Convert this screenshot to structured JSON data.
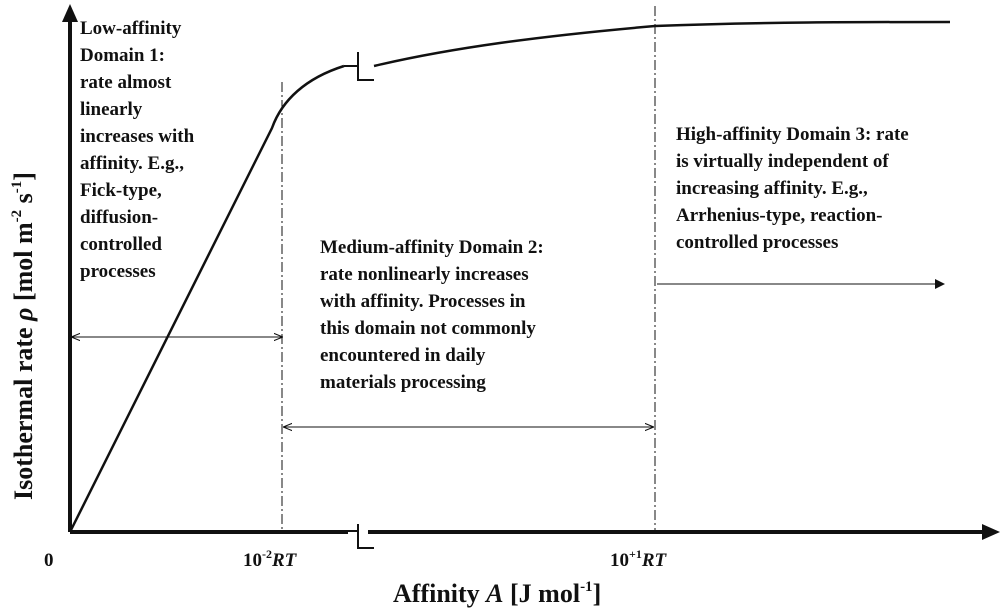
{
  "chart_data": {
    "type": "line",
    "title": "",
    "xlabel": {
      "prefix": "Affinity ",
      "symbol": "A",
      "unit_open": " [J mol",
      "unit_exp": "-1",
      "unit_close": "]"
    },
    "ylabel": {
      "prefix": "Isothermal rate ",
      "symbol": "ρ",
      "unit_open": " [mol m",
      "unit_exp1": "-2",
      "unit_mid": " s",
      "unit_exp2": "-1",
      "unit_close": "]"
    },
    "x_ticks": [
      {
        "base": "0",
        "exp": "",
        "suffix": ""
      },
      {
        "base": "10",
        "exp": "-2",
        "suffix": "RT"
      },
      {
        "base": "10",
        "exp": "+1",
        "suffix": "RT"
      }
    ],
    "axis_break": true,
    "grid": false,
    "curve_shape": "linear rise, then nonlinear bend across an axis break, then plateau",
    "domains": [
      {
        "id": "low",
        "lines": [
          "Low-affinity",
          "Domain 1:",
          "rate almost",
          "linearly",
          "increases with",
          "affinity.  E.g.,",
          "Fick-type,",
          "diffusion-",
          "controlled",
          "processes"
        ]
      },
      {
        "id": "medium",
        "lines": [
          "Medium-affinity Domain 2:",
          "rate nonlinearly increases",
          "with affinity.  Processes in",
          "this domain not commonly",
          "encountered in daily",
          "materials processing"
        ]
      },
      {
        "id": "high",
        "lines": [
          "High-affinity Domain 3: rate",
          "is virtually independent of",
          "increasing affinity.  E.g.,",
          "Arrhenius-type, reaction-",
          "controlled processes"
        ]
      }
    ],
    "colors": {
      "ink": "#111111",
      "background": "#ffffff"
    }
  }
}
